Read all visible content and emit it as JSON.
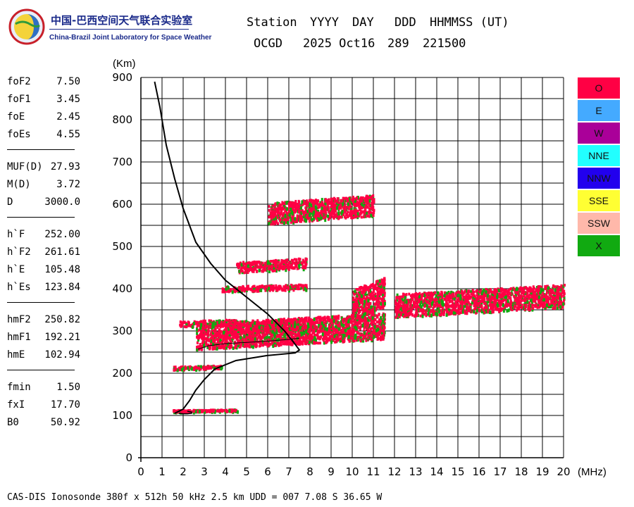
{
  "logo": {
    "cn": "中国-巴西空间天气联合实验室",
    "en": "China-Brazil Joint Laboratory for Space Weather"
  },
  "header": {
    "line1": [
      "Station",
      "YYYY",
      "DAY",
      "DDD",
      "HHMMSS (UT)"
    ],
    "line2": [
      "OCGD",
      "2025 Oct16",
      "289",
      "221500"
    ]
  },
  "params": [
    [
      {
        "name": "foF2",
        "value": "7.50"
      },
      {
        "name": "foF1",
        "value": "3.45"
      },
      {
        "name": "foE",
        "value": "2.45"
      },
      {
        "name": "foEs",
        "value": "4.55"
      }
    ],
    [
      {
        "name": "MUF(D)",
        "value": "27.93"
      },
      {
        "name": "M(D)",
        "value": "3.72"
      },
      {
        "name": "D",
        "value": "3000.0"
      }
    ],
    [
      {
        "name": "h`F",
        "value": "252.00"
      },
      {
        "name": "h`F2",
        "value": "261.61"
      },
      {
        "name": "h`E",
        "value": "105.48"
      },
      {
        "name": "h`Es",
        "value": "123.84"
      }
    ],
    [
      {
        "name": "hmF2",
        "value": "250.82"
      },
      {
        "name": "hmF1",
        "value": "192.21"
      },
      {
        "name": "hmE",
        "value": "102.94"
      }
    ],
    [
      {
        "name": "fmin",
        "value": "1.50"
      },
      {
        "name": "fxI",
        "value": "17.70"
      },
      {
        "name": "B0",
        "value": "50.92"
      }
    ]
  ],
  "legend": [
    {
      "label": "O",
      "color": "#ff0044"
    },
    {
      "label": "E",
      "color": "#44aaff"
    },
    {
      "label": "W",
      "color": "#aa0099"
    },
    {
      "label": "NNE",
      "color": "#22ffff"
    },
    {
      "label": "NNW",
      "color": "#2200ee"
    },
    {
      "label": "SSE",
      "color": "#ffff33"
    },
    {
      "label": "SSW",
      "color": "#ffb8aa"
    },
    {
      "label": "X",
      "color": "#11aa11"
    }
  ],
  "footer": "CAS-DIS Ionosonde 380f x 512h 50 kHz 2.5 km UDD = 007 7.08 S 36.65 W",
  "chart_data": {
    "type": "scatter",
    "ylabel": "(Km)",
    "xunit": "(MHz)",
    "xlim": [
      0,
      20
    ],
    "ylim": [
      0,
      900
    ],
    "x_ticks": [
      0,
      1,
      2,
      3,
      4,
      5,
      6,
      7,
      8,
      9,
      10,
      11,
      12,
      13,
      14,
      15,
      16,
      17,
      18,
      19,
      20
    ],
    "y_ticks": [
      0,
      100,
      200,
      300,
      400,
      500,
      600,
      700,
      800,
      900
    ],
    "grid": true,
    "trace_bands": [
      {
        "mode": "O",
        "x_start": 1.5,
        "x_end": 4.55,
        "h_start": 110,
        "h_end": 115
      },
      {
        "mode": "O",
        "x_start": 1.5,
        "x_end": 3.8,
        "h_start": 210,
        "h_end": 218
      },
      {
        "mode": "O",
        "x_start": 1.8,
        "x_end": 4.5,
        "h_start": 312,
        "h_end": 325
      },
      {
        "mode": "O",
        "x_start": 2.6,
        "x_end": 11.5,
        "h_start": 258,
        "h_end": 320
      },
      {
        "mode": "O",
        "x_start": 4.0,
        "x_end": 7.5,
        "h_start": 295,
        "h_end": 320
      },
      {
        "mode": "O",
        "x_start": 12.0,
        "x_end": 20.0,
        "h_start": 335,
        "h_end": 390
      },
      {
        "mode": "O",
        "x_start": 10.0,
        "x_end": 11.5,
        "h_start": 330,
        "h_end": 400
      },
      {
        "mode": "O",
        "x_start": 3.8,
        "x_end": 7.8,
        "h_start": 395,
        "h_end": 408
      },
      {
        "mode": "O",
        "x_start": 4.5,
        "x_end": 7.8,
        "h_start": 440,
        "h_end": 465
      },
      {
        "mode": "O",
        "x_start": 6.0,
        "x_end": 11.0,
        "h_start": 555,
        "h_end": 605
      }
    ],
    "profile_curve": {
      "x": [
        0.65,
        0.9,
        1.2,
        1.6,
        2.0,
        2.6,
        3.3,
        4.0,
        5.0,
        6.0,
        6.8,
        7.2,
        7.5,
        7.3,
        6.0,
        4.5,
        3.5,
        3.0,
        2.6,
        2.3,
        2.0,
        1.6
      ],
      "y": [
        890,
        830,
        740,
        660,
        590,
        510,
        460,
        420,
        380,
        340,
        300,
        275,
        255,
        248,
        242,
        230,
        210,
        185,
        160,
        135,
        115,
        105
      ]
    },
    "echo_curve": {
      "x": [
        2.7,
        3.2,
        4.0,
        5.0,
        6.0,
        7.0,
        7.5
      ],
      "y": [
        257,
        265,
        270,
        273,
        276,
        280,
        283
      ]
    },
    "e_trace": {
      "x": [
        1.8,
        2.0,
        2.2,
        2.4,
        2.4,
        2.2
      ],
      "y": [
        105,
        104,
        104,
        105,
        108,
        110
      ]
    }
  }
}
